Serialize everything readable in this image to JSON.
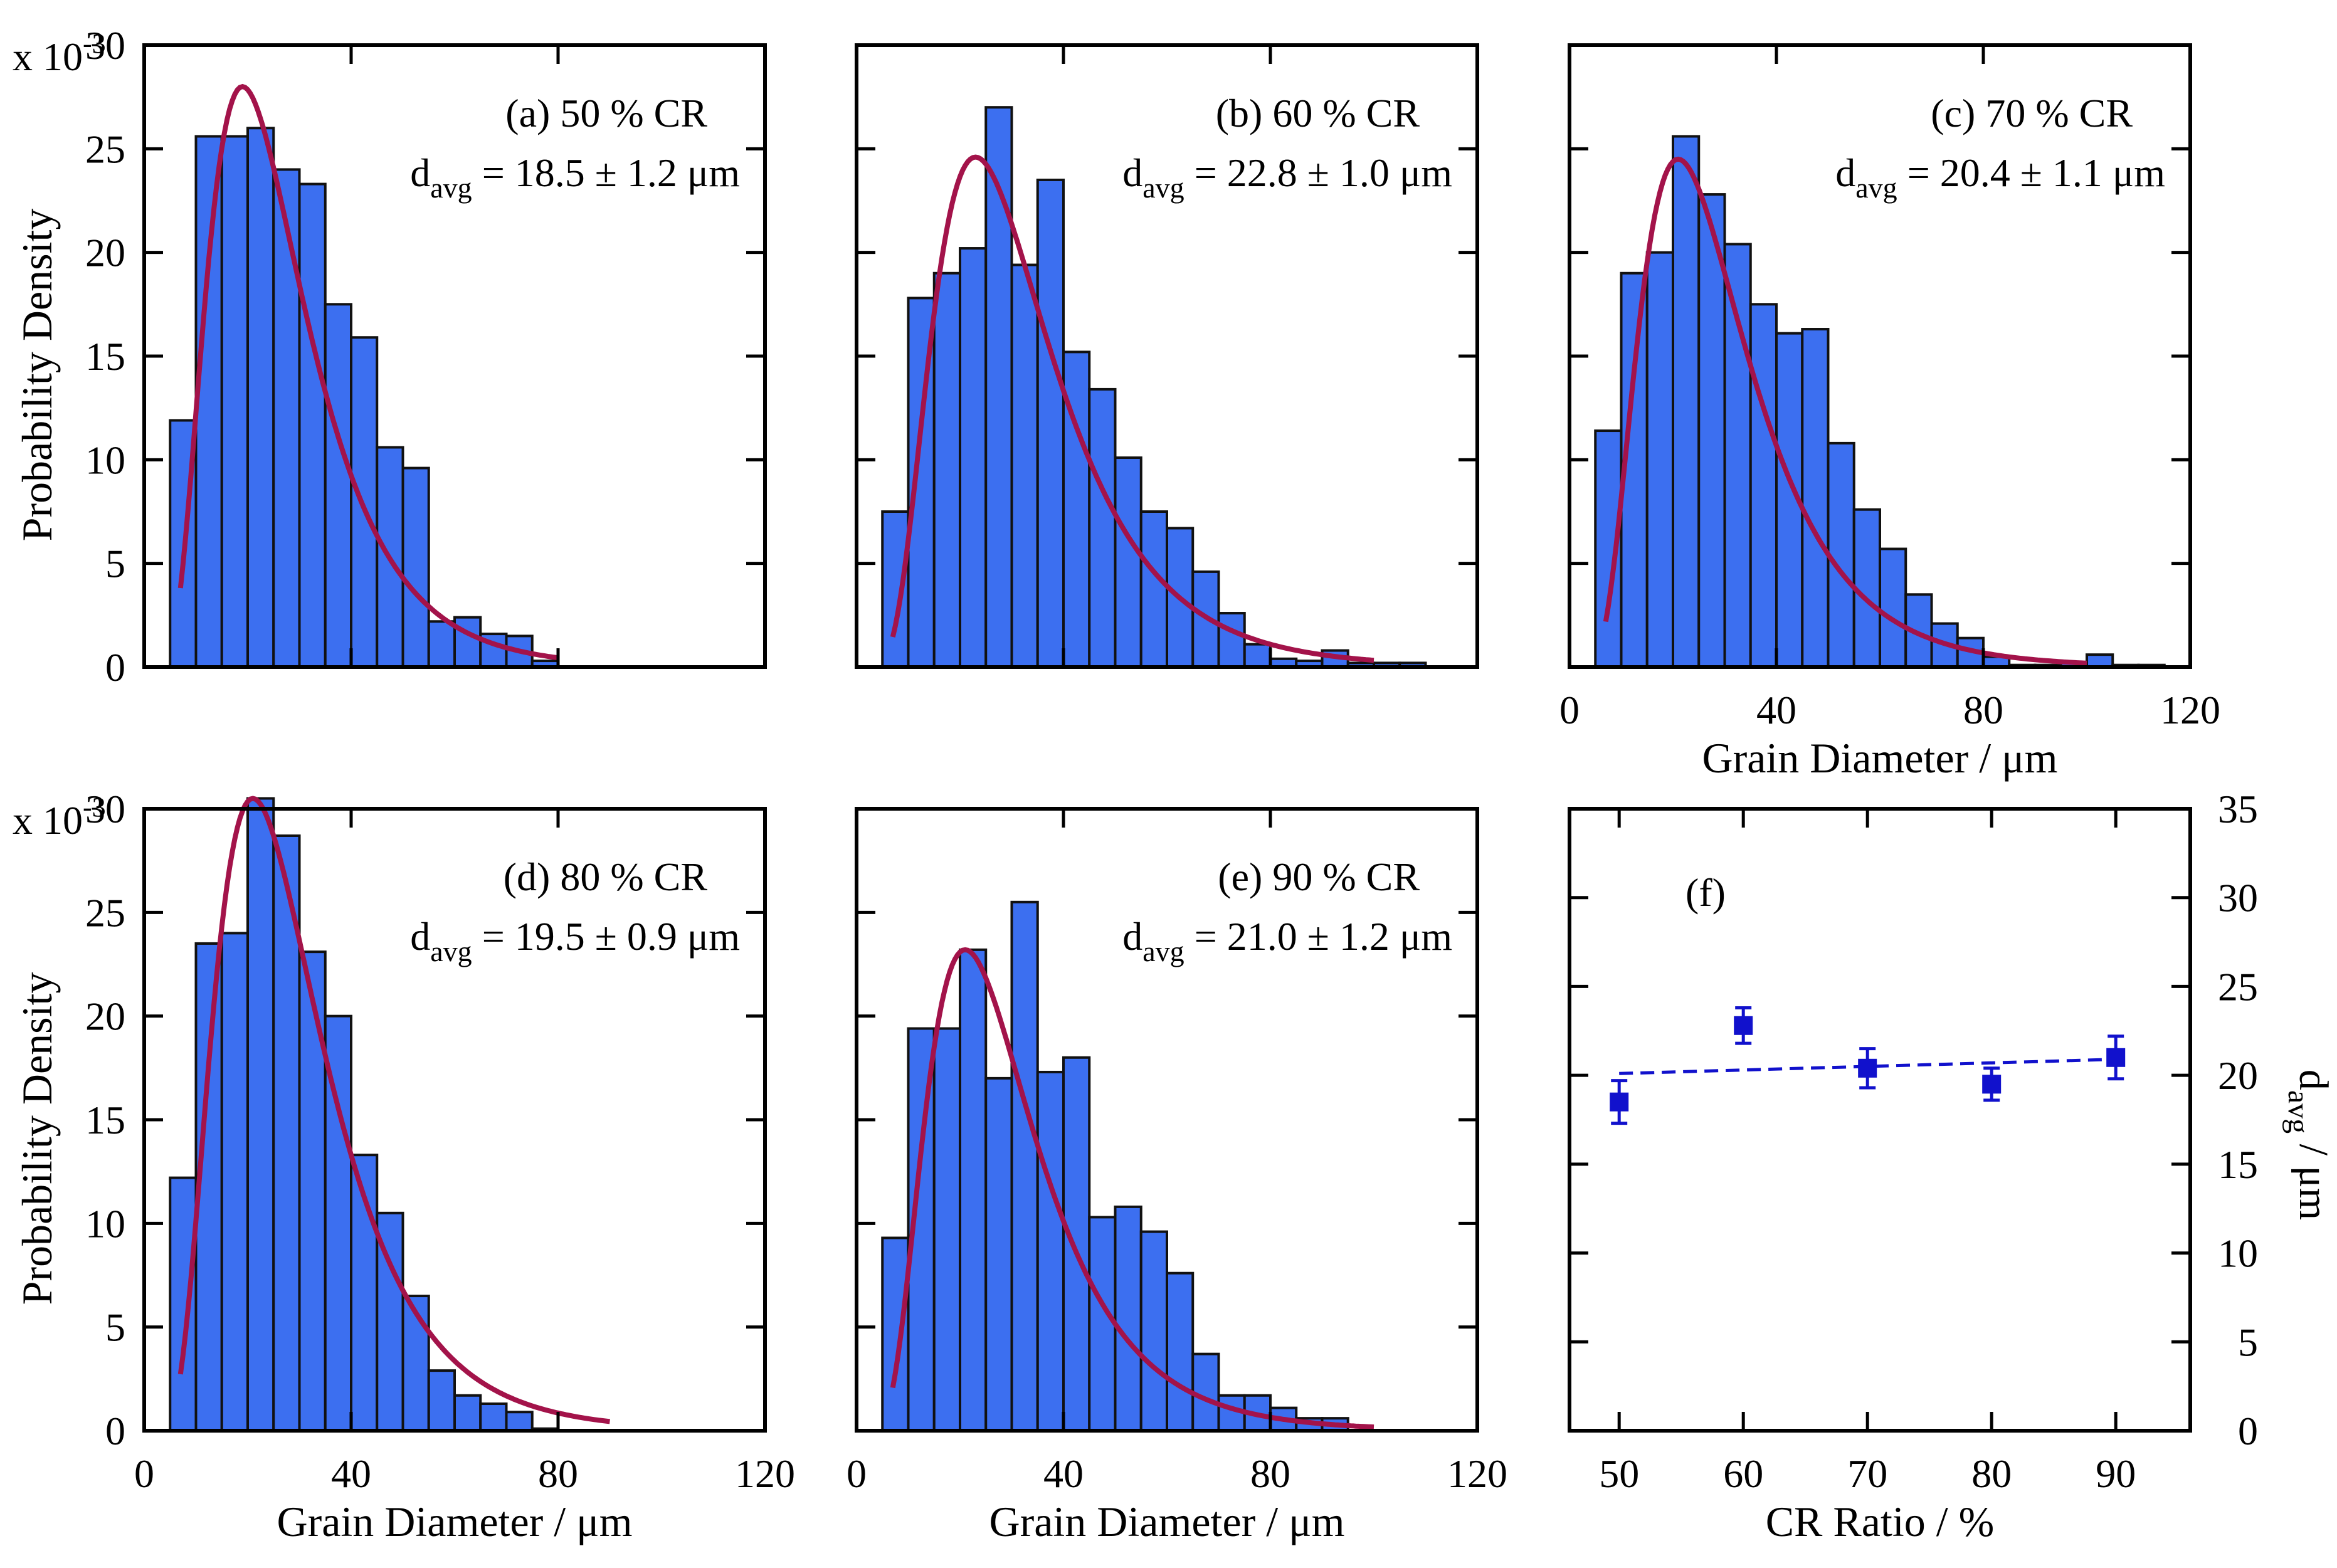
{
  "figure": {
    "bar_color": "#3c6ff0",
    "fit_color": "#a3134a",
    "point_color": "#1111cc"
  },
  "chart_data": [
    {
      "panel": "a",
      "type": "bar",
      "title": "(a) 50 % CR",
      "davg_label": "d",
      "davg_sub": "avg",
      "davg_value": " = 18.5 ± 1.2 μm",
      "xlabel": "",
      "ylabel": "Probability Density",
      "y_multiplier": "x 10",
      "y_exponent": "-3",
      "xlim": [
        0,
        120
      ],
      "ylim": [
        0,
        30
      ],
      "bin_width": 5,
      "bin_start": 5,
      "values": [
        11.9,
        25.6,
        25.6,
        26.0,
        24.0,
        23.3,
        17.5,
        15.9,
        10.6,
        9.6,
        2.2,
        2.4,
        1.6,
        1.5,
        0.3,
        0,
        0,
        0,
        0,
        0,
        0,
        0,
        0
      ],
      "fit": {
        "mode": 19.0,
        "peak": 28.0,
        "start": 7,
        "end": 80
      },
      "xticks": [
        0,
        40,
        80,
        120
      ],
      "xtick_labels": [
        "",
        "",
        "",
        ""
      ],
      "yticks": [
        0,
        5,
        10,
        15,
        20,
        25,
        30
      ],
      "ytick_labels": [
        "0",
        "5",
        "10",
        "15",
        "20",
        "25",
        "30"
      ]
    },
    {
      "panel": "b",
      "type": "bar",
      "title": "(b) 60 % CR",
      "davg_label": "d",
      "davg_sub": "avg",
      "davg_value": " = 22.8 ± 1.0 μm",
      "xlabel": "",
      "ylabel": "",
      "xlim": [
        0,
        120
      ],
      "ylim": [
        0,
        30
      ],
      "bin_width": 5,
      "bin_start": 5,
      "values": [
        7.5,
        17.8,
        19.0,
        20.2,
        27.0,
        19.4,
        23.5,
        15.2,
        13.4,
        10.1,
        7.5,
        6.7,
        4.6,
        2.6,
        1.1,
        0.4,
        0.3,
        0.8,
        0.2,
        0.2,
        0.2,
        0,
        0
      ],
      "fit": {
        "mode": 23.0,
        "peak": 24.6,
        "start": 7,
        "end": 100
      },
      "xticks": [
        0,
        40,
        80,
        120
      ],
      "xtick_labels": [
        "",
        "",
        "",
        ""
      ],
      "yticks": [
        0,
        5,
        10,
        15,
        20,
        25,
        30
      ],
      "ytick_labels": [
        "",
        "",
        "",
        "",
        "",
        "",
        ""
      ]
    },
    {
      "panel": "c",
      "type": "bar",
      "title": "(c) 70 % CR",
      "davg_label": "d",
      "davg_sub": "avg",
      "davg_value": " = 20.4 ± 1.1 μm",
      "xlabel": "Grain Diameter / μm",
      "ylabel": "",
      "xlim": [
        0,
        120
      ],
      "ylim": [
        0,
        30
      ],
      "bin_width": 5,
      "bin_start": 5,
      "values": [
        11.4,
        19.0,
        20.0,
        25.6,
        22.8,
        20.4,
        17.5,
        16.1,
        16.3,
        10.8,
        7.6,
        5.7,
        3.5,
        2.1,
        1.4,
        0.5,
        0.1,
        0.1,
        0.2,
        0.6,
        0.1,
        0.1,
        0
      ],
      "fit": {
        "mode": 21.0,
        "peak": 24.5,
        "start": 7,
        "end": 100
      },
      "xticks": [
        0,
        40,
        80,
        120
      ],
      "xtick_labels": [
        "0",
        "40",
        "80",
        "120"
      ],
      "yticks": [
        0,
        5,
        10,
        15,
        20,
        25,
        30
      ],
      "ytick_labels": [
        "",
        "",
        "",
        "",
        "",
        "",
        ""
      ]
    },
    {
      "panel": "d",
      "type": "bar",
      "title": "(d) 80 % CR",
      "davg_label": "d",
      "davg_sub": "avg",
      "davg_value": " = 19.5 ± 0.9 μm",
      "xlabel": "Grain Diameter / μm",
      "ylabel": "Probability Density",
      "y_multiplier": "x 10",
      "y_exponent": "-3",
      "xlim": [
        0,
        120
      ],
      "ylim": [
        0,
        30
      ],
      "bin_width": 5,
      "bin_start": 5,
      "values": [
        12.2,
        23.5,
        24.0,
        30.5,
        28.7,
        23.1,
        20.0,
        13.3,
        10.5,
        6.5,
        2.9,
        1.7,
        1.3,
        0.9,
        0.1,
        0,
        0,
        0,
        0,
        0,
        0,
        0,
        0
      ],
      "fit": {
        "mode": 21.0,
        "peak": 30.5,
        "start": 7,
        "end": 90
      },
      "xticks": [
        0,
        40,
        80,
        120
      ],
      "xtick_labels": [
        "0",
        "40",
        "80",
        "120"
      ],
      "yticks": [
        0,
        5,
        10,
        15,
        20,
        25,
        30
      ],
      "ytick_labels": [
        "0",
        "5",
        "10",
        "15",
        "20",
        "25",
        "30"
      ]
    },
    {
      "panel": "e",
      "type": "bar",
      "title": "(e) 90 % CR",
      "davg_label": "d",
      "davg_sub": "avg",
      "davg_value": " = 21.0 ± 1.2 μm",
      "xlabel": "Grain Diameter / μm",
      "ylabel": "",
      "xlim": [
        0,
        120
      ],
      "ylim": [
        0,
        30
      ],
      "bin_width": 5,
      "bin_start": 5,
      "values": [
        9.3,
        19.4,
        19.4,
        23.2,
        17.0,
        25.5,
        17.3,
        18.0,
        10.3,
        10.8,
        9.6,
        7.6,
        3.7,
        1.7,
        1.7,
        1.1,
        0.6,
        0.6,
        0,
        0,
        0,
        0,
        0
      ],
      "fit": {
        "mode": 21.0,
        "peak": 23.2,
        "start": 7,
        "end": 100
      },
      "xticks": [
        0,
        40,
        80,
        120
      ],
      "xtick_labels": [
        "0",
        "40",
        "80",
        "120"
      ],
      "yticks": [
        0,
        5,
        10,
        15,
        20,
        25,
        30
      ],
      "ytick_labels": [
        "",
        "",
        "",
        "",
        "",
        "",
        ""
      ]
    },
    {
      "panel": "f",
      "type": "scatter",
      "title": "(f)",
      "xlabel": "CR Ratio / %",
      "ylabel_main": "d",
      "ylabel_sub": "avg",
      "ylabel_rest": " / μm",
      "xlim": [
        46,
        96
      ],
      "ylim": [
        0,
        35
      ],
      "x": [
        50,
        60,
        70,
        80,
        90
      ],
      "y": [
        18.5,
        22.8,
        20.4,
        19.5,
        21.0
      ],
      "err": [
        1.2,
        1.0,
        1.1,
        0.9,
        1.2
      ],
      "trend": {
        "x": [
          50,
          90
        ],
        "y": [
          20.1,
          20.9
        ]
      },
      "xticks": [
        50,
        60,
        70,
        80,
        90
      ],
      "xtick_labels": [
        "50",
        "60",
        "70",
        "80",
        "90"
      ],
      "yticks": [
        0,
        5,
        10,
        15,
        20,
        25,
        30,
        35
      ],
      "ytick_labels": [
        "0",
        "5",
        "10",
        "15",
        "20",
        "25",
        "30",
        "35"
      ]
    }
  ]
}
